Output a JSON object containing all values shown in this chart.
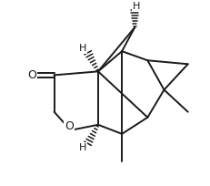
{
  "background": "#ffffff",
  "line_color": "#1a1a1a",
  "line_width": 1.4,
  "figsize": [
    2.32,
    2.04
  ],
  "dpi": 100,
  "xlim": [
    0.0,
    1.0
  ],
  "ylim": [
    0.0,
    1.0
  ]
}
